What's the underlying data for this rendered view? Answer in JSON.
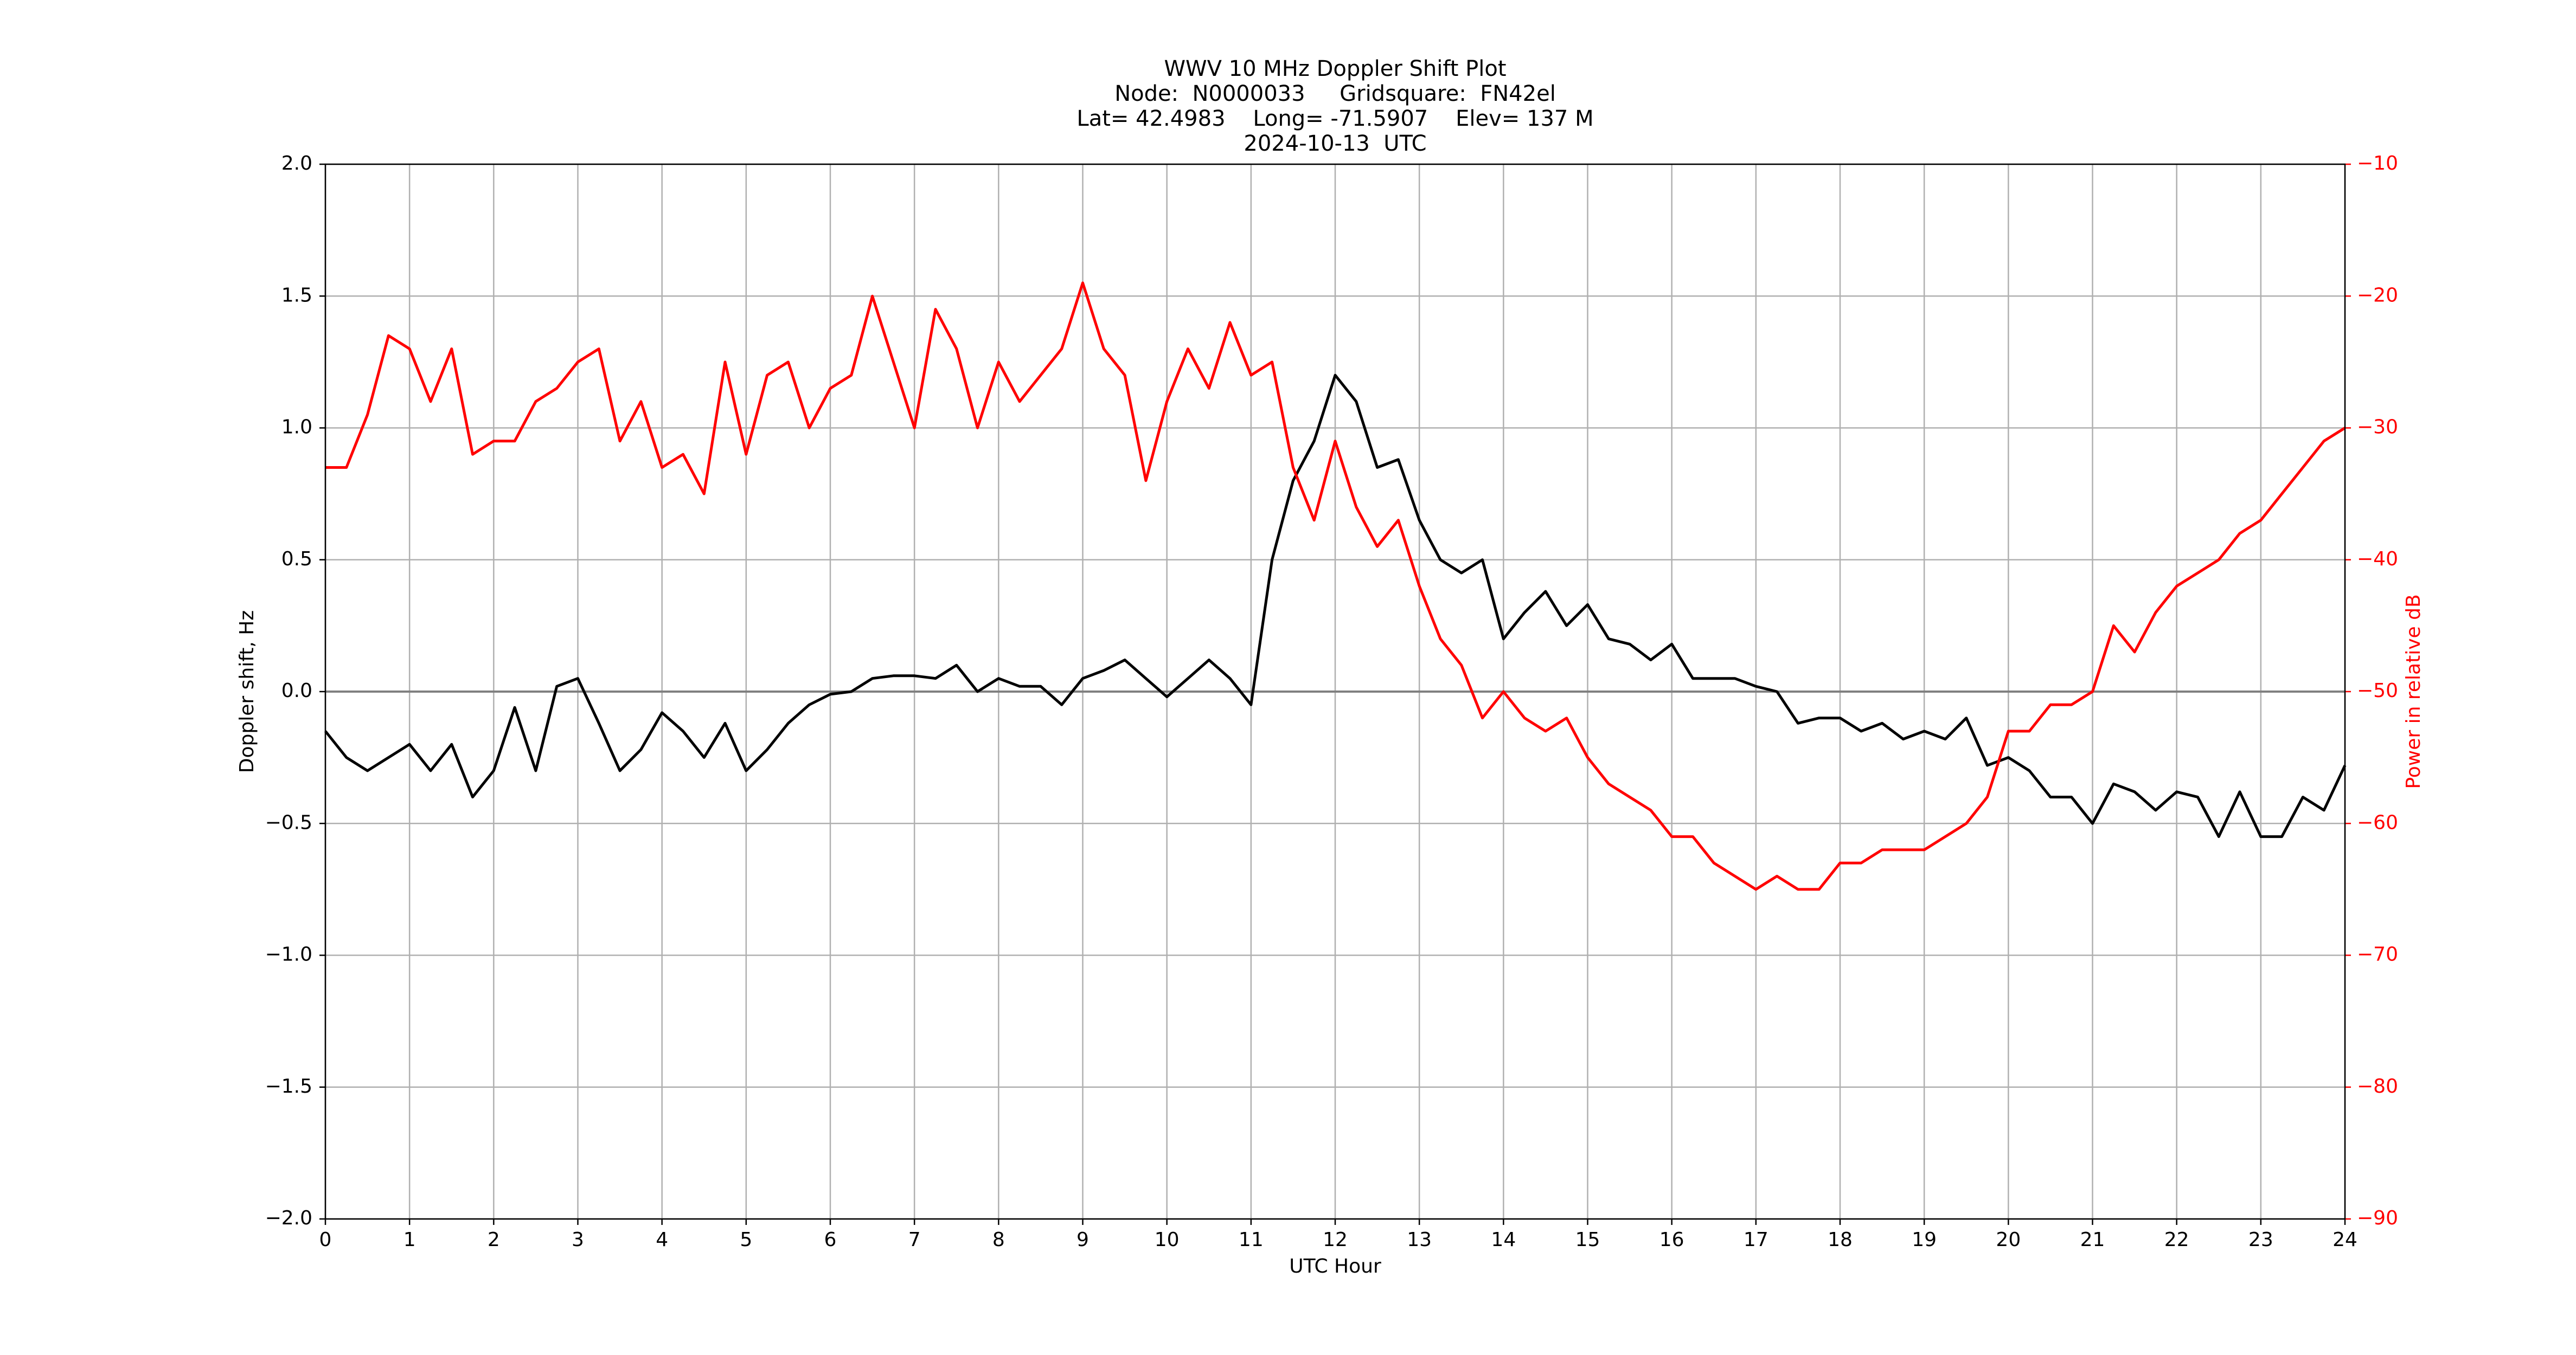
{
  "chart_data": {
    "type": "line",
    "title": [
      "WWV 10 MHz Doppler Shift Plot",
      "Node:  N0000033     Gridsquare:  FN42el",
      "Lat= 42.4983    Long= -71.5907    Elev= 137 M",
      "2024-10-13  UTC"
    ],
    "xlabel": "UTC Hour",
    "ylabel": "Doppler shift, Hz",
    "y2label": "Power in relative dB",
    "y2label_color": "#ff0000",
    "x": [
      0,
      0.25,
      0.5,
      0.75,
      1,
      1.25,
      1.5,
      1.75,
      2,
      2.25,
      2.5,
      2.75,
      3,
      3.25,
      3.5,
      3.75,
      4,
      4.25,
      4.5,
      4.75,
      5,
      5.25,
      5.5,
      5.75,
      6,
      6.25,
      6.5,
      6.75,
      7,
      7.25,
      7.5,
      7.75,
      8,
      8.25,
      8.5,
      8.75,
      9,
      9.25,
      9.5,
      9.75,
      10,
      10.25,
      10.5,
      10.75,
      11,
      11.25,
      11.5,
      11.75,
      12,
      12.25,
      12.5,
      12.75,
      13,
      13.25,
      13.5,
      13.75,
      14,
      14.25,
      14.5,
      14.75,
      15,
      15.25,
      15.5,
      15.75,
      16,
      16.25,
      16.5,
      16.75,
      17,
      17.25,
      17.5,
      17.75,
      18,
      18.25,
      18.5,
      18.75,
      19,
      19.25,
      19.5,
      19.75,
      20,
      20.25,
      20.5,
      20.75,
      21,
      21.25,
      21.5,
      21.75,
      22,
      22.25,
      22.5,
      22.75,
      23,
      23.25,
      23.5,
      23.75,
      24
    ],
    "series": [
      {
        "name": "Doppler shift",
        "color": "#000000",
        "values": [
          -0.15,
          -0.25,
          -0.3,
          -0.25,
          -0.2,
          -0.3,
          -0.2,
          -0.4,
          -0.3,
          -0.06,
          -0.3,
          0.02,
          0.05,
          -0.12,
          -0.3,
          -0.22,
          -0.08,
          -0.15,
          -0.25,
          -0.12,
          -0.3,
          -0.22,
          -0.12,
          -0.05,
          -0.01,
          0,
          0.05,
          0.06,
          0.06,
          0.05,
          0.1,
          0,
          0.05,
          0.02,
          0.02,
          -0.05,
          0.05,
          0.08,
          0.12,
          0.05,
          -0.02,
          0.05,
          0.12,
          0.05,
          -0.05,
          0.5,
          0.8,
          0.95,
          1.2,
          1.1,
          0.85,
          0.88,
          0.65,
          0.5,
          0.45,
          0.5,
          0.2,
          0.3,
          0.38,
          0.25,
          0.33,
          0.2,
          0.18,
          0.12,
          0.18,
          0.05,
          0.05,
          0.05,
          0.02,
          0,
          -0.12,
          -0.1,
          -0.1,
          -0.15,
          -0.12,
          -0.18,
          -0.15,
          -0.18,
          -0.1,
          -0.28,
          -0.25,
          -0.3,
          -0.4,
          -0.4,
          -0.5,
          -0.35,
          -0.38,
          -0.45,
          -0.38,
          -0.4,
          -0.55,
          -0.38,
          -0.55,
          -0.55,
          -0.4,
          -0.45,
          -0.28
        ]
      },
      {
        "name": "Power",
        "color": "#ff0000",
        "axis": "y2",
        "values": [
          -33,
          -33,
          -29,
          -23,
          -24,
          -28,
          -24,
          -32,
          -31,
          -31,
          -28,
          -27,
          -25,
          -24,
          -31,
          -28,
          -33,
          -32,
          -35,
          -25,
          -32,
          -26,
          -25,
          -30,
          -27,
          -26,
          -20,
          -25,
          -30,
          -21,
          -24,
          -30,
          -25,
          -28,
          -26,
          -24,
          -19,
          -24,
          -26,
          -34,
          -28,
          -24,
          -27,
          -22,
          -26,
          -25,
          -33,
          -37,
          -31,
          -36,
          -39,
          -37,
          -42,
          -46,
          -48,
          -52,
          -50,
          -52,
          -53,
          -52,
          -55,
          -57,
          -58,
          -59,
          -61,
          -61,
          -63,
          -64,
          -65,
          -64,
          -65,
          -65,
          -63,
          -63,
          -62,
          -62,
          -62,
          -61,
          -60,
          -58,
          -53,
          -53,
          -51,
          -51,
          -50,
          -45,
          -47,
          -44,
          -42,
          -41,
          -40,
          -38,
          -37,
          -35,
          -33,
          -31,
          -30
        ]
      }
    ],
    "xlim": [
      0,
      24
    ],
    "xticks": [
      0,
      1,
      2,
      3,
      4,
      5,
      6,
      7,
      8,
      9,
      10,
      11,
      12,
      13,
      14,
      15,
      16,
      17,
      18,
      19,
      20,
      21,
      22,
      23,
      24
    ],
    "ylim": [
      -2,
      2
    ],
    "yticks": [
      {
        "value": -2,
        "label": "−2.0"
      },
      {
        "value": -1.5,
        "label": "−1.5"
      },
      {
        "value": -1,
        "label": "−1.0"
      },
      {
        "value": -0.5,
        "label": "−0.5"
      },
      {
        "value": 0,
        "label": "0.0"
      },
      {
        "value": 0.5,
        "label": "0.5"
      },
      {
        "value": 1,
        "label": "1.0"
      },
      {
        "value": 1.5,
        "label": "1.5"
      },
      {
        "value": 2,
        "label": "2.0"
      }
    ],
    "y2lim": [
      -90,
      -10
    ],
    "y2ticks": [
      {
        "value": -90,
        "label": "−90"
      },
      {
        "value": -80,
        "label": "−80"
      },
      {
        "value": -70,
        "label": "−70"
      },
      {
        "value": -60,
        "label": "−60"
      },
      {
        "value": -50,
        "label": "−50"
      },
      {
        "value": -40,
        "label": "−40"
      },
      {
        "value": -30,
        "label": "−30"
      },
      {
        "value": -20,
        "label": "−20"
      },
      {
        "value": -10,
        "label": "−10"
      }
    ],
    "grid": true
  }
}
